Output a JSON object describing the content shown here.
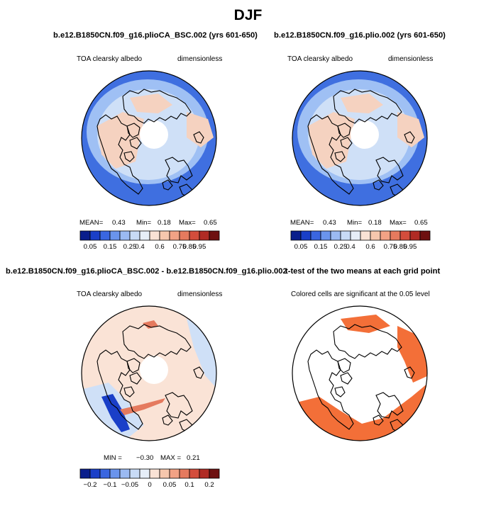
{
  "title": "DJF",
  "panels": [
    {
      "id": "p1",
      "title": "b.e12.B1850CN.f09_g16.plioCA_BSC.002 (yrs 601-650)",
      "left_label": "TOA clearsky albedo",
      "right_label": "dimensionless",
      "stats": {
        "mean_label": "MEAN=",
        "mean": "0.43",
        "min_label": "Min=",
        "min": "0.18",
        "max_label": "Max=",
        "max": "0.65"
      }
    },
    {
      "id": "p2",
      "title": "b.e12.B1850CN.f09_g16.plio.002 (yrs 601-650)",
      "left_label": "TOA clearsky albedo",
      "right_label": "dimensionless",
      "stats": {
        "mean_label": "MEAN=",
        "mean": "0.43",
        "min_label": "Min=",
        "min": "0.18",
        "max_label": "Max=",
        "max": "0.65"
      }
    },
    {
      "id": "p3",
      "title": "b.e12.B1850CN.f09_g16.plioCA_BSC.002 - b.e12.B1850CN.f09_g16.plio.002",
      "left_label": "TOA clearsky albedo",
      "right_label": "dimensionless",
      "stats": {
        "min_label": "MIN =",
        "min": "−0.30",
        "max_label": "MAX =",
        "max": "0.21"
      }
    },
    {
      "id": "p4",
      "title": "t-test of the two means at each grid point",
      "left_label": "Colored cells are significant at the 0.05 level"
    }
  ],
  "colorbars": {
    "albedo": {
      "colors": [
        "#0a1e8c",
        "#1a3fc8",
        "#3a66e0",
        "#6a94ec",
        "#9bbaf2",
        "#c8dbf6",
        "#e6eef8",
        "#f9e2d5",
        "#f6c7ad",
        "#f2a285",
        "#e57a5e",
        "#d34d3c",
        "#b02b24",
        "#6e1010"
      ],
      "tick_labels": [
        "0.05",
        "0.15",
        "0.25",
        "0.4",
        "0.6",
        "0.75",
        "0.85",
        "0.95"
      ],
      "tick_positions": [
        1,
        3,
        5,
        6,
        8,
        10,
        11,
        12
      ]
    },
    "difference": {
      "colors": [
        "#0a1e8c",
        "#1a3fc8",
        "#3a66e0",
        "#6a94ec",
        "#9bbaf2",
        "#c8dbf6",
        "#e6eef8",
        "#f9e2d5",
        "#f6c7ad",
        "#f2a285",
        "#e57a5e",
        "#d34d3c",
        "#b02b24",
        "#6e1010"
      ],
      "tick_labels": [
        "−0.2",
        "−0.1",
        "−0.05",
        "0",
        "0.05",
        "0.1",
        "0.2"
      ],
      "tick_positions": [
        1,
        3,
        5,
        7,
        9,
        11,
        13
      ]
    }
  },
  "colors": {
    "ocean_blue": "#3f6fe0",
    "mid_blue": "#9fc0f4",
    "pale_blue": "#cfe0f7",
    "light_orange": "#f5d2c0",
    "significance": "#f36f38",
    "diff_background": "#fae3d6"
  },
  "chart_data": [
    {
      "type": "heatmap",
      "projection": "north polar stereographic",
      "panel": "p1",
      "variable": "TOA clearsky albedo",
      "units": "dimensionless",
      "mean": 0.43,
      "min": 0.18,
      "max": 0.65
    },
    {
      "type": "heatmap",
      "projection": "north polar stereographic",
      "panel": "p2",
      "variable": "TOA clearsky albedo",
      "units": "dimensionless",
      "mean": 0.43,
      "min": 0.18,
      "max": 0.65
    },
    {
      "type": "heatmap",
      "projection": "north polar stereographic",
      "panel": "p3",
      "variable": "TOA clearsky albedo",
      "units": "dimensionless",
      "min": -0.3,
      "max": 0.21
    },
    {
      "type": "heatmap",
      "projection": "north polar stereographic",
      "panel": "p4",
      "significance_level": 0.05
    }
  ]
}
